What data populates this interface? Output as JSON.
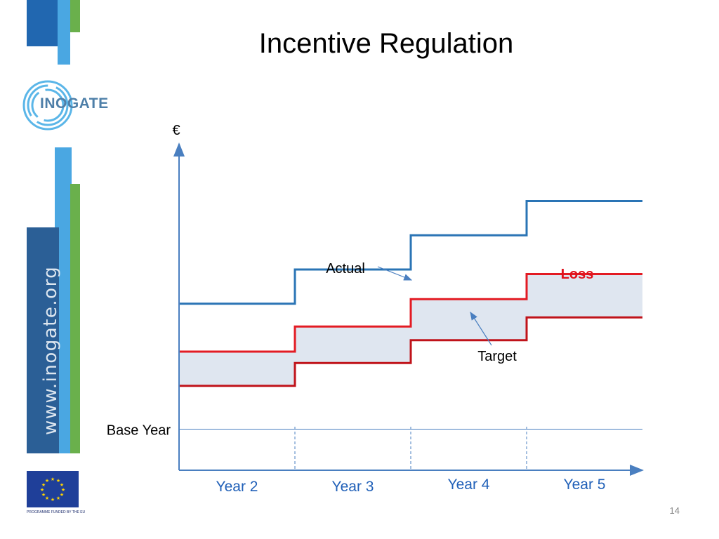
{
  "slide": {
    "title": "Incentive Regulation",
    "logo_text": "INOGATE",
    "side_url": "www.inogate.org",
    "eu_caption": "PROGRAMME FUNDED BY THE EU",
    "page_number": "14"
  },
  "colors": {
    "actual_line": "#e31b23",
    "target_line": "#c0131a",
    "upper_line": "#2a74b5",
    "loss_fill": "#dfe6f0",
    "axis": "#4a7fc0",
    "year_label": "#2060b8",
    "loss_label": "#e0111b",
    "brand_blue": "#1f5fa8",
    "brand_light_blue": "#4aa7e2",
    "brand_green": "#6ab04c"
  },
  "chart_data": {
    "type": "line",
    "step": true,
    "title": "",
    "ylabel": "€",
    "xlabel": "",
    "categories": [
      "Year 2",
      "Year 3",
      "Year 4",
      "Year 5"
    ],
    "base_line_label": "Base Year",
    "series": [
      {
        "key": "upper",
        "values": [
          7.3,
          8.8,
          10.3,
          11.8
        ]
      },
      {
        "name": "Actual",
        "key": "actual",
        "values": [
          5.2,
          6.3,
          7.5,
          8.6
        ]
      },
      {
        "name": "Target",
        "key": "target",
        "values": [
          3.7,
          4.7,
          5.7,
          6.7
        ]
      }
    ],
    "shaded_region": {
      "label": "Loss",
      "between": [
        "actual",
        "target"
      ]
    },
    "annotations": [
      "Actual",
      "Target",
      "Loss"
    ],
    "ylim": [
      0,
      14
    ],
    "base_value": 1.8,
    "grid": false
  }
}
